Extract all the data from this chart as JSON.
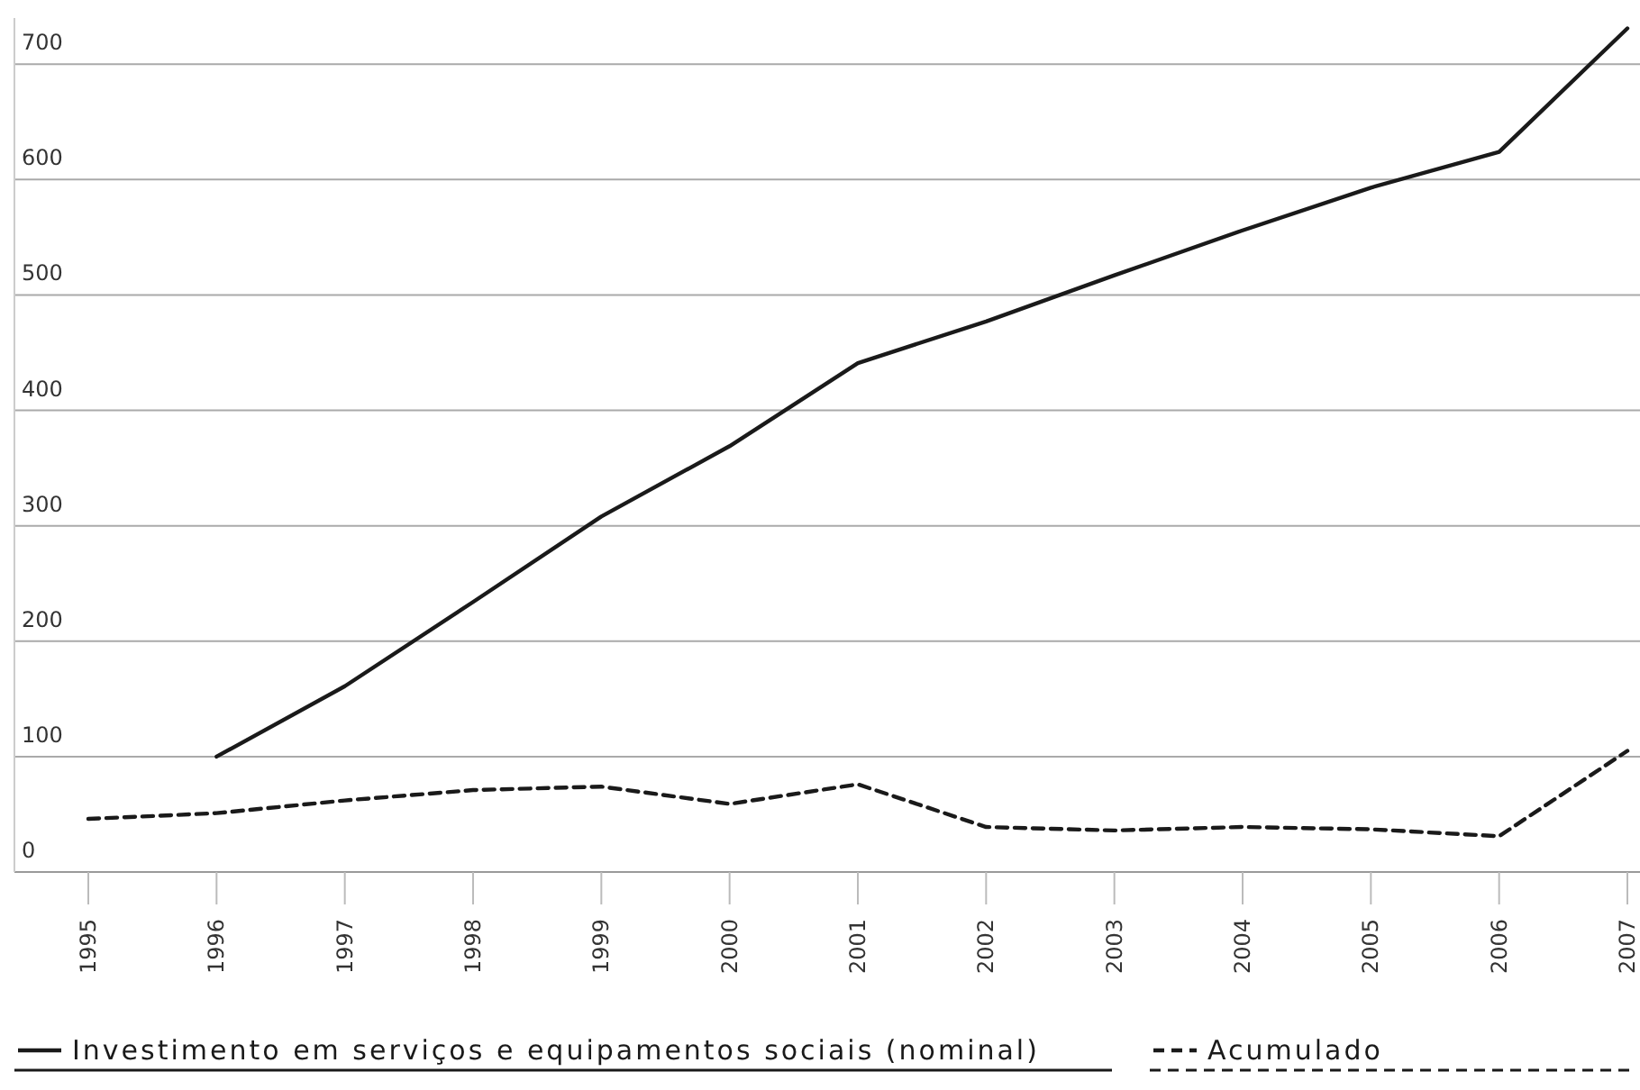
{
  "chart_data": {
    "type": "line",
    "categories": [
      "1995",
      "1996",
      "1997",
      "1998",
      "1999",
      "2000",
      "2001",
      "2002",
      "2003",
      "2004",
      "2005",
      "2006",
      "2007"
    ],
    "series": [
      {
        "name": "Investimento em serviços e equipamentos sociais (nominal)",
        "color": "#1a1a1a",
        "line_style": "solid",
        "values": [
          null,
          100,
          161,
          234,
          308,
          369,
          441,
          477,
          517,
          556,
          593,
          624,
          731
        ]
      },
      {
        "name": "Acumulado",
        "color": "#1a1a1a",
        "line_style": "dashed",
        "values": [
          46,
          51,
          62,
          71,
          74,
          59,
          76,
          39,
          36,
          39,
          37,
          31,
          105
        ]
      }
    ],
    "ylim": [
      0,
      740
    ],
    "yticks": [
      0,
      100,
      200,
      300,
      400,
      500,
      600,
      700
    ],
    "grid": "y",
    "legend": "bottom",
    "marker": "none"
  }
}
